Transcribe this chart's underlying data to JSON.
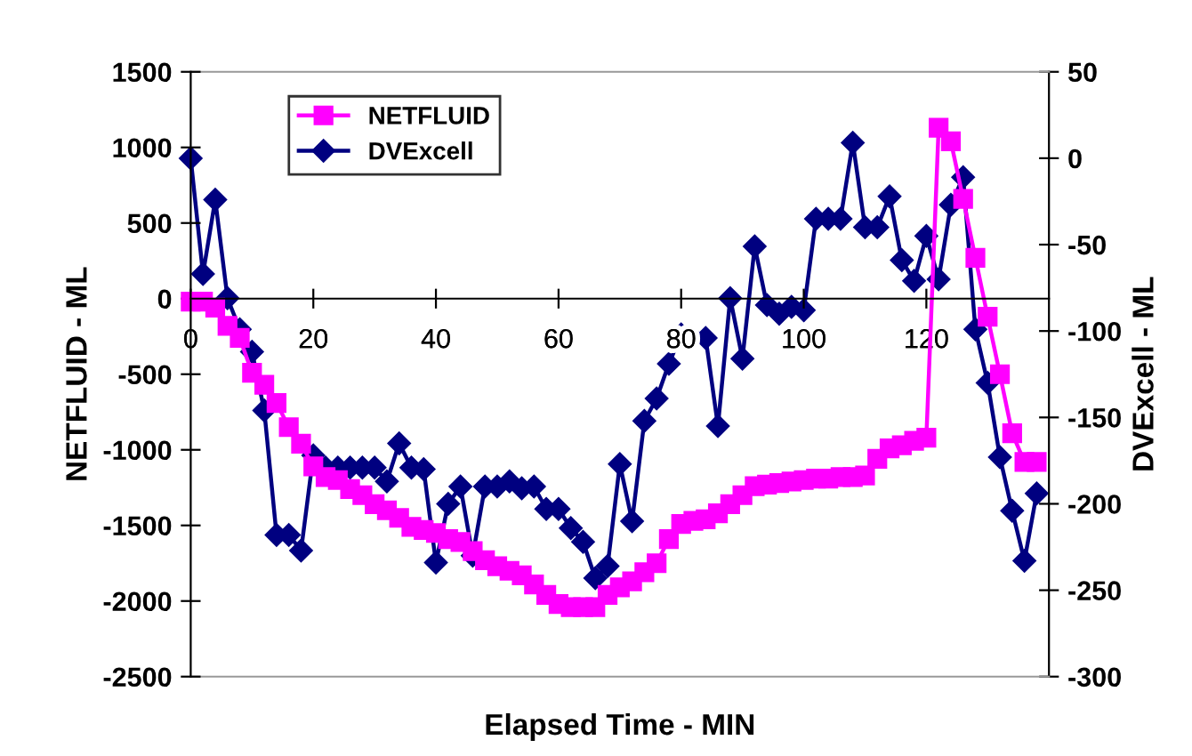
{
  "chart_data": {
    "type": "line",
    "xlabel": "Elapsed Time - MIN",
    "ylabel": "NETFLUID - ML",
    "y2label": "DVExcell - ML",
    "xlim": [
      0,
      140
    ],
    "xticks": [
      0,
      20,
      40,
      60,
      80,
      100,
      120
    ],
    "ylim": [
      -2500,
      1500
    ],
    "yticks": [
      -2500,
      -2000,
      -1500,
      -1000,
      -500,
      0,
      500,
      1000,
      1500
    ],
    "y2lim": [
      -300,
      50
    ],
    "y2ticks": [
      -300,
      -250,
      -200,
      -150,
      -100,
      -50,
      0,
      50
    ],
    "x": [
      0,
      2,
      4,
      6,
      8,
      10,
      12,
      14,
      16,
      18,
      20,
      22,
      24,
      26,
      28,
      30,
      32,
      34,
      36,
      38,
      40,
      42,
      44,
      46,
      48,
      50,
      52,
      54,
      56,
      58,
      60,
      62,
      64,
      66,
      68,
      70,
      72,
      74,
      76,
      78,
      80,
      82,
      84,
      86,
      88,
      90,
      92,
      94,
      96,
      98,
      100,
      102,
      104,
      106,
      108,
      110,
      112,
      114,
      116,
      118,
      120,
      122,
      124,
      126,
      128,
      130,
      132,
      134,
      136,
      138
    ],
    "grid": false,
    "legend": "top left",
    "series": [
      {
        "name": "NETFLUID",
        "color": "#ff00ff",
        "marker": "square",
        "values": [
          -20,
          -20,
          -60,
          -180,
          -260,
          -490,
          -570,
          -690,
          -850,
          -960,
          -1110,
          -1180,
          -1200,
          -1260,
          -1300,
          -1360,
          -1400,
          -1450,
          -1510,
          -1530,
          -1550,
          -1590,
          -1610,
          -1670,
          -1730,
          -1770,
          -1800,
          -1830,
          -1890,
          -1960,
          -2020,
          -2040,
          -2040,
          -2040,
          -1960,
          -1910,
          -1870,
          -1810,
          -1750,
          -1590,
          -1490,
          -1470,
          -1460,
          -1420,
          -1360,
          -1300,
          -1240,
          -1230,
          -1220,
          -1210,
          -1200,
          -1190,
          -1190,
          -1180,
          -1180,
          -1170,
          -1060,
          -990,
          -970,
          -940,
          -920,
          1130,
          1040,
          660,
          270,
          -120,
          -500,
          -890,
          -1080,
          -1080
        ]
      },
      {
        "name": "DVExcell",
        "color": "#000080",
        "marker": "diamond",
        "axis": "y2",
        "values": [
          0,
          -67,
          -24,
          -81,
          -99,
          -112,
          -146,
          -218,
          -218,
          -227,
          -172,
          -179,
          -179,
          -179,
          -179,
          -179,
          -187,
          -165,
          -179,
          -180,
          -234,
          -200,
          -190,
          -230,
          -190,
          -190,
          -187,
          -191,
          -190,
          -203,
          -203,
          -214,
          -222,
          -243,
          -236,
          -177,
          -210,
          -152,
          -139,
          -119,
          -102,
          -104,
          -104,
          -155,
          -81,
          -116,
          -51,
          -85,
          -90,
          -86,
          -88,
          -35,
          -35,
          -35,
          9,
          -40,
          -40,
          -22,
          -59,
          -71,
          -45,
          -70,
          -27,
          -11,
          -99,
          -130,
          -173,
          -204,
          -233,
          -194
        ]
      }
    ]
  }
}
